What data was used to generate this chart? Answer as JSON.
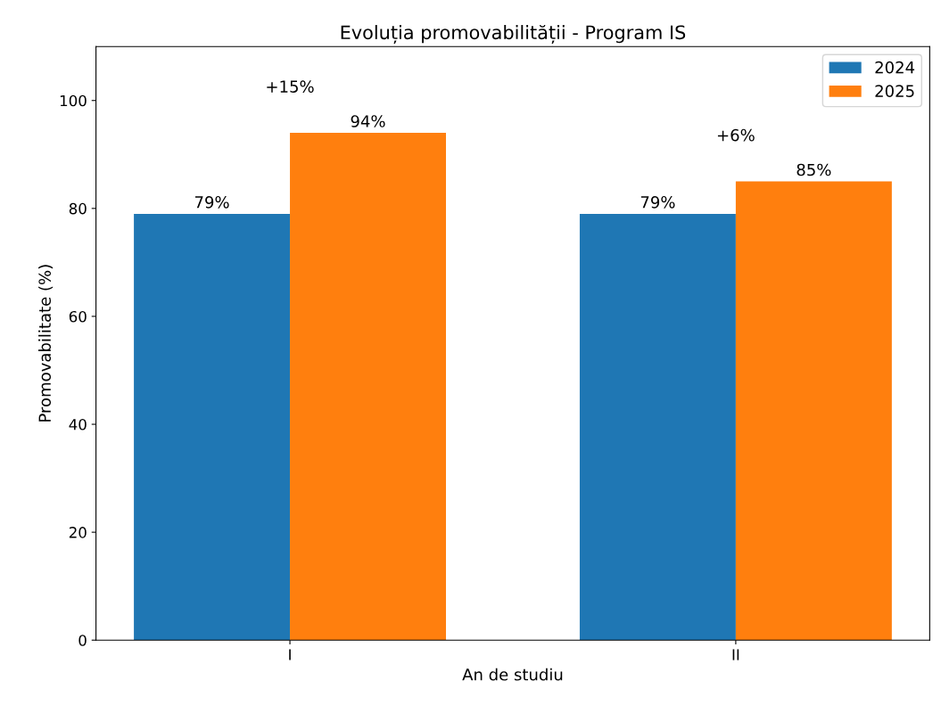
{
  "chart_data": {
    "type": "bar",
    "title": "Evoluția promovabilității - Program IS",
    "xlabel": "An de studiu",
    "ylabel": "Promovabilitate (%)",
    "categories": [
      "I",
      "II"
    ],
    "series": [
      {
        "name": "2024",
        "color": "#1f77b4",
        "values": [
          79,
          79
        ],
        "value_labels": [
          "79%",
          "79%"
        ]
      },
      {
        "name": "2025",
        "color": "#ff7f0e",
        "values": [
          94,
          85
        ],
        "value_labels": [
          "94%",
          "85%"
        ]
      }
    ],
    "ylim": [
      0,
      110
    ],
    "yticks": [
      0,
      20,
      40,
      60,
      80,
      100
    ],
    "annotations": [
      "+15%",
      "+6%"
    ],
    "legend": "top right",
    "grid": false
  }
}
